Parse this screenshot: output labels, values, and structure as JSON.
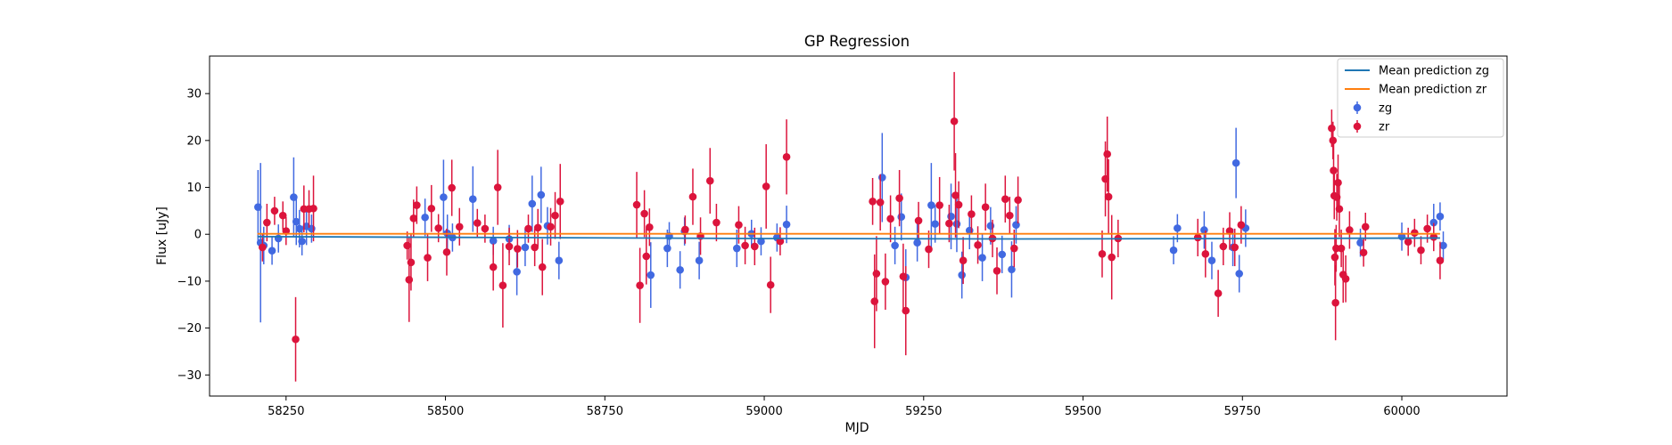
{
  "chart_data": {
    "type": "scatter",
    "title": "GP Regression",
    "xlabel": "MJD",
    "ylabel": "Flux [uJy]",
    "xlim": [
      58130,
      60165
    ],
    "ylim": [
      -34.5,
      38
    ],
    "xticks": [
      58250,
      58500,
      58750,
      59000,
      59250,
      59500,
      59750,
      60000
    ],
    "yticks": [
      -30,
      -20,
      -10,
      0,
      10,
      20,
      30
    ],
    "legend_location": "top-right",
    "lines": [
      {
        "name": "Mean prediction zg",
        "color": "#1f77b4",
        "x": [
          58205,
          58600,
          59000,
          59400,
          59800,
          60060
        ],
        "y": [
          -0.5,
          -0.7,
          -0.9,
          -1.0,
          -0.9,
          -0.8
        ]
      },
      {
        "name": "Mean prediction zr",
        "color": "#ff7f0e",
        "x": [
          58205,
          60060
        ],
        "y": [
          0.1,
          0.1
        ]
      }
    ],
    "series": [
      {
        "name": "zg",
        "color": "#4169e1",
        "points": [
          [
            58206,
            5.8,
            7.9
          ],
          [
            58210,
            -1.8,
            17
          ],
          [
            58215,
            -2.4,
            4
          ],
          [
            58228,
            -3.5,
            3
          ],
          [
            58238,
            -0.9,
            3
          ],
          [
            58262,
            7.9,
            8.5
          ],
          [
            58266,
            2.7,
            5
          ],
          [
            58271,
            1.2,
            4
          ],
          [
            58275,
            -1.5,
            3
          ],
          [
            58282,
            1.7,
            4
          ],
          [
            58290,
            1.2,
            3
          ],
          [
            58468,
            3.6,
            4
          ],
          [
            58497,
            7.9,
            8
          ],
          [
            58503,
            0.2,
            4
          ],
          [
            58511,
            -0.7,
            3
          ],
          [
            58543,
            7.5,
            7
          ],
          [
            58575,
            -1.4,
            3
          ],
          [
            58600,
            -1.0,
            3
          ],
          [
            58612,
            -8.0,
            5
          ],
          [
            58625,
            -2.8,
            4
          ],
          [
            58636,
            6.5,
            6
          ],
          [
            58650,
            8.4,
            6
          ],
          [
            58660,
            1.8,
            4
          ],
          [
            58678,
            -5.6,
            4
          ],
          [
            58822,
            -8.7,
            7
          ],
          [
            58848,
            -3.0,
            4
          ],
          [
            58851,
            -0.4,
            3
          ],
          [
            58868,
            -7.6,
            4
          ],
          [
            58875,
            0.6,
            3
          ],
          [
            58898,
            -5.6,
            4
          ],
          [
            58957,
            -3.0,
            4
          ],
          [
            58980,
            0.1,
            3
          ],
          [
            58995,
            -1.5,
            3
          ],
          [
            59020,
            -0.7,
            3
          ],
          [
            59035,
            2.1,
            4
          ],
          [
            59185,
            12.1,
            9.5
          ],
          [
            59205,
            -2.4,
            4
          ],
          [
            59215,
            3.7,
            5
          ],
          [
            59222,
            -9.2,
            6
          ],
          [
            59240,
            -1.8,
            4
          ],
          [
            59262,
            6.2,
            9
          ],
          [
            59268,
            2.2,
            4
          ],
          [
            59293,
            3.8,
            7
          ],
          [
            59302,
            2.2,
            6
          ],
          [
            59310,
            -8.7,
            5
          ],
          [
            59322,
            0.8,
            4
          ],
          [
            59342,
            -5.0,
            5
          ],
          [
            59355,
            1.8,
            4
          ],
          [
            59373,
            -4.3,
            4
          ],
          [
            59388,
            -7.5,
            6
          ],
          [
            59395,
            2.0,
            4
          ],
          [
            59642,
            -3.4,
            3
          ],
          [
            59648,
            1.3,
            3
          ],
          [
            59690,
            0.9,
            4
          ],
          [
            59702,
            -5.6,
            4
          ],
          [
            59735,
            -2.8,
            4
          ],
          [
            59740,
            15.2,
            7.5
          ],
          [
            59745,
            -8.4,
            4
          ],
          [
            59755,
            1.3,
            4
          ],
          [
            59935,
            -1.8,
            3
          ],
          [
            60000,
            -0.5,
            3
          ],
          [
            60050,
            2.5,
            4
          ],
          [
            60060,
            3.8,
            3
          ],
          [
            60065,
            -2.4,
            3
          ]
        ]
      },
      {
        "name": "zr",
        "color": "#dc143c",
        "points": [
          [
            58213,
            -2.8,
            3
          ],
          [
            58220,
            2.5,
            4
          ],
          [
            58232,
            5.0,
            3
          ],
          [
            58245,
            4.0,
            3
          ],
          [
            58250,
            0.7,
            3
          ],
          [
            58265,
            -22.4,
            9
          ],
          [
            58278,
            5.4,
            5
          ],
          [
            58286,
            5.4,
            4
          ],
          [
            58293,
            5.5,
            7
          ],
          [
            58440,
            -2.4,
            3
          ],
          [
            58443,
            -9.7,
            9
          ],
          [
            58446,
            -6.0,
            6
          ],
          [
            58450,
            3.4,
            4
          ],
          [
            58455,
            6.2,
            4
          ],
          [
            58472,
            -5.0,
            5
          ],
          [
            58478,
            5.5,
            5
          ],
          [
            58489,
            1.3,
            3
          ],
          [
            58502,
            -3.8,
            5
          ],
          [
            58510,
            9.9,
            6
          ],
          [
            58522,
            1.6,
            4
          ],
          [
            58550,
            2.4,
            3
          ],
          [
            58562,
            1.2,
            3
          ],
          [
            58575,
            -7.0,
            5
          ],
          [
            58582,
            10.0,
            8
          ],
          [
            58590,
            -10.9,
            9
          ],
          [
            58600,
            -2.6,
            4
          ],
          [
            58613,
            -3.1,
            4
          ],
          [
            58630,
            1.2,
            3
          ],
          [
            58640,
            -2.8,
            4
          ],
          [
            58645,
            1.4,
            4
          ],
          [
            58652,
            -7.0,
            6
          ],
          [
            58665,
            1.6,
            4
          ],
          [
            58672,
            4.0,
            5
          ],
          [
            58680,
            7.0,
            8
          ],
          [
            58800,
            6.3,
            7
          ],
          [
            58805,
            -10.9,
            8
          ],
          [
            58812,
            4.4,
            5
          ],
          [
            58815,
            -4.7,
            6
          ],
          [
            58820,
            1.5,
            4
          ],
          [
            58876,
            1.0,
            3
          ],
          [
            58888,
            8.0,
            6
          ],
          [
            58900,
            -0.4,
            4
          ],
          [
            58915,
            11.4,
            7
          ],
          [
            58925,
            2.5,
            4
          ],
          [
            58960,
            2.0,
            4
          ],
          [
            58970,
            -2.4,
            4
          ],
          [
            58985,
            -2.6,
            4
          ],
          [
            59003,
            10.2,
            9
          ],
          [
            59010,
            -10.8,
            6
          ],
          [
            59025,
            -1.5,
            3
          ],
          [
            59035,
            16.5,
            8
          ],
          [
            59170,
            7.0,
            5
          ],
          [
            59173,
            -14.3,
            10
          ],
          [
            59176,
            -8.4,
            8
          ],
          [
            59182,
            6.8,
            6
          ],
          [
            59190,
            -10.1,
            6
          ],
          [
            59198,
            3.3,
            5
          ],
          [
            59212,
            7.7,
            6
          ],
          [
            59218,
            -9.0,
            7
          ],
          [
            59222,
            -16.3,
            9.5
          ],
          [
            59242,
            2.9,
            4
          ],
          [
            59258,
            -3.2,
            4
          ],
          [
            59275,
            6.2,
            6
          ],
          [
            59290,
            2.3,
            4
          ],
          [
            59298,
            24.1,
            10.5
          ],
          [
            59300,
            8.3,
            9
          ],
          [
            59305,
            6.3,
            5
          ],
          [
            59312,
            -5.6,
            5
          ],
          [
            59325,
            4.3,
            4
          ],
          [
            59335,
            -2.3,
            4
          ],
          [
            59347,
            5.8,
            5
          ],
          [
            59358,
            -0.9,
            4
          ],
          [
            59365,
            -7.8,
            5
          ],
          [
            59378,
            7.5,
            5
          ],
          [
            59385,
            4.0,
            4
          ],
          [
            59392,
            -3.0,
            4
          ],
          [
            59398,
            7.3,
            5
          ],
          [
            59530,
            -4.2,
            5
          ],
          [
            59535,
            11.8,
            8
          ],
          [
            59538,
            17.1,
            8
          ],
          [
            59540,
            8.0,
            8
          ],
          [
            59545,
            -4.9,
            9
          ],
          [
            59555,
            -0.9,
            4
          ],
          [
            59680,
            -0.7,
            4
          ],
          [
            59692,
            -4.2,
            5
          ],
          [
            59712,
            -12.6,
            5
          ],
          [
            59720,
            -2.6,
            4
          ],
          [
            59730,
            0.7,
            4
          ],
          [
            59738,
            -2.8,
            4
          ],
          [
            59748,
            2.0,
            4
          ],
          [
            59890,
            22.6,
            4
          ],
          [
            59892,
            20.0,
            4
          ],
          [
            59893,
            13.6,
            6
          ],
          [
            59894,
            8.2,
            5
          ],
          [
            59895,
            -4.9,
            6
          ],
          [
            59896,
            -14.6,
            8
          ],
          [
            59897,
            -3.0,
            5
          ],
          [
            59898,
            7.9,
            5
          ],
          [
            59900,
            11.0,
            6
          ],
          [
            59902,
            5.4,
            6
          ],
          [
            59905,
            -3.0,
            4
          ],
          [
            59908,
            -8.6,
            6
          ],
          [
            59912,
            -9.5,
            5
          ],
          [
            59918,
            0.9,
            4
          ],
          [
            59940,
            -3.9,
            3
          ],
          [
            59943,
            1.6,
            3
          ],
          [
            60010,
            -1.6,
            3
          ],
          [
            60020,
            0.3,
            3
          ],
          [
            60030,
            -3.4,
            3
          ],
          [
            60040,
            1.2,
            3
          ],
          [
            60050,
            -0.6,
            3
          ],
          [
            60060,
            -5.6,
            4
          ]
        ]
      }
    ]
  }
}
